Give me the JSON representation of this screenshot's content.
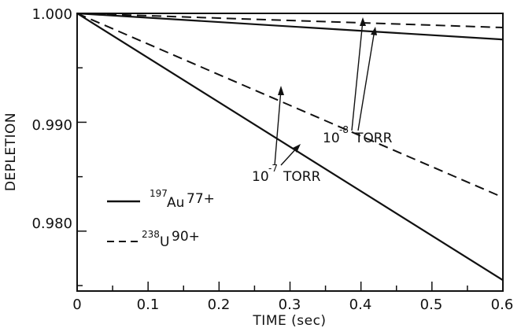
{
  "chart_data": {
    "type": "line",
    "xlabel": "TIME (sec)",
    "ylabel": "DEPLETION",
    "xlim": [
      0,
      0.6
    ],
    "ylim": [
      0.9745,
      1.0
    ],
    "x_ticks": [
      "0",
      "0.1",
      "0.2",
      "0.3",
      "0.4",
      "0.5",
      "0.6"
    ],
    "y_ticks": [
      "1.000",
      "0.990",
      "0.980"
    ],
    "y_tick_values": [
      1.0,
      0.99,
      0.98
    ],
    "series": [
      {
        "key": "au_1e8",
        "style": "solid",
        "x": [
          0,
          0.6
        ],
        "y": [
          1.0,
          0.9976
        ]
      },
      {
        "key": "u_1e8",
        "style": "dashed",
        "x": [
          0,
          0.6
        ],
        "y": [
          1.0,
          0.9987
        ]
      },
      {
        "key": "au_1e7",
        "style": "solid",
        "x": [
          0,
          0.6
        ],
        "y": [
          1.0,
          0.9755
        ]
      },
      {
        "key": "u_1e7",
        "style": "dashed",
        "x": [
          0,
          0.6
        ],
        "y": [
          1.0,
          0.9831
        ]
      }
    ],
    "annotations": {
      "torr_1e8": {
        "base": "10",
        "exp": "-8",
        "unit": "TORR"
      },
      "torr_1e7": {
        "base": "10",
        "exp": "-7",
        "unit": "TORR"
      }
    },
    "legend": {
      "placement": "lower-left",
      "entries": [
        {
          "style": "solid",
          "mass": "197",
          "element": "Au",
          "charge": "77+"
        },
        {
          "style": "dashed",
          "mass": "238",
          "element": "U",
          "charge": "90+"
        }
      ]
    },
    "grid": false
  }
}
